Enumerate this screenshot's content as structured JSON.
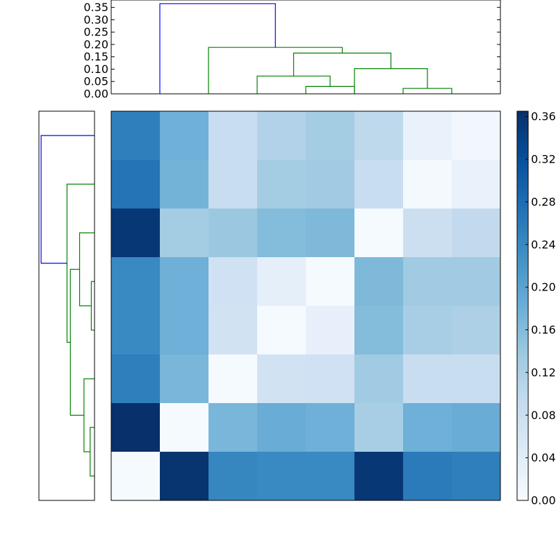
{
  "chart_data": {
    "type": "heatmap",
    "colormap": "Blues",
    "colors": {
      "frame": "#000000",
      "dendro_top_link": "#0000ff",
      "dendro_cluster_link": "#008000",
      "colormap_low": "#f7fbff",
      "colormap_high": "#08306b"
    },
    "matrix": [
      [
        0.255,
        0.18,
        0.085,
        0.115,
        0.13,
        0.1,
        0.025,
        0.01
      ],
      [
        0.27,
        0.175,
        0.085,
        0.13,
        0.135,
        0.085,
        0.005,
        0.025
      ],
      [
        0.355,
        0.13,
        0.14,
        0.16,
        0.165,
        0.003,
        0.08,
        0.095
      ],
      [
        0.24,
        0.18,
        0.075,
        0.035,
        0.003,
        0.165,
        0.135,
        0.135
      ],
      [
        0.24,
        0.18,
        0.07,
        0.003,
        0.03,
        0.16,
        0.125,
        0.12
      ],
      [
        0.255,
        0.17,
        0.003,
        0.07,
        0.075,
        0.135,
        0.085,
        0.085
      ],
      [
        0.365,
        0.003,
        0.17,
        0.185,
        0.18,
        0.125,
        0.18,
        0.185
      ],
      [
        0.003,
        0.36,
        0.245,
        0.24,
        0.24,
        0.355,
        0.26,
        0.255
      ]
    ],
    "heatmap_cols": [
      "",
      "",
      "",
      "",
      "",
      "",
      "",
      ""
    ],
    "heatmap_rows": [
      "",
      "",
      "",
      "",
      "",
      "",
      "",
      ""
    ],
    "colorbar": {
      "vmin": 0.0,
      "vmax": 0.365,
      "ticks": [
        {
          "value": 0.0,
          "label": "0.00"
        },
        {
          "value": 0.04,
          "label": "0.04"
        },
        {
          "value": 0.08,
          "label": "0.08"
        },
        {
          "value": 0.12,
          "label": "0.12"
        },
        {
          "value": 0.16,
          "label": "0.16"
        },
        {
          "value": 0.2,
          "label": "0.20"
        },
        {
          "value": 0.24,
          "label": "0.24"
        },
        {
          "value": 0.28,
          "label": "0.28"
        },
        {
          "value": 0.32,
          "label": "0.32"
        },
        {
          "value": 0.36,
          "label": "0.36"
        }
      ]
    },
    "top_dendrogram": {
      "ylim": [
        0.0,
        0.38
      ],
      "yticks": [
        {
          "value": 0.0,
          "label": "0.00"
        },
        {
          "value": 0.05,
          "label": "0.05"
        },
        {
          "value": 0.1,
          "label": "0.10"
        },
        {
          "value": 0.15,
          "label": "0.15"
        },
        {
          "value": 0.2,
          "label": "0.20"
        },
        {
          "value": 0.25,
          "label": "0.25"
        },
        {
          "value": 0.3,
          "label": "0.30"
        },
        {
          "value": 0.35,
          "label": "0.35"
        }
      ],
      "links": [
        {
          "x": [
            5,
            5,
            6,
            6
          ],
          "y": [
            0.0,
            0.03,
            0.03,
            0.0
          ],
          "color": "dendro_cluster_link"
        },
        {
          "x": [
            7,
            7,
            8,
            8
          ],
          "y": [
            0.0,
            0.022,
            0.022,
            0.0
          ],
          "color": "dendro_cluster_link"
        },
        {
          "x": [
            4,
            4,
            5.5,
            5.5
          ],
          "y": [
            0.0,
            0.072,
            0.072,
            0.03
          ],
          "color": "dendro_cluster_link"
        },
        {
          "x": [
            6,
            6,
            7.5,
            7.5
          ],
          "y": [
            0.0,
            0.102,
            0.102,
            0.022
          ],
          "color": "dendro_cluster_link"
        },
        {
          "x": [
            4.75,
            4.75,
            6.75,
            6.75
          ],
          "y": [
            0.072,
            0.165,
            0.165,
            0.102
          ],
          "color": "dendro_cluster_link"
        },
        {
          "x": [
            3,
            3,
            5.75,
            5.75
          ],
          "y": [
            0.0,
            0.188,
            0.188,
            0.165
          ],
          "color": "dendro_cluster_link"
        },
        {
          "x": [
            2,
            2,
            4.375,
            4.375
          ],
          "y": [
            0.0,
            0.365,
            0.365,
            0.188
          ],
          "color": "dendro_top_link"
        }
      ]
    },
    "left_dendrogram": {
      "xlim": [
        0.0,
        0.38
      ],
      "links": [
        {
          "y": [
            0,
            0,
            1,
            1
          ],
          "x": [
            0.0,
            0.03,
            0.03,
            0.0
          ],
          "color": "dendro_cluster_link"
        },
        {
          "y": [
            0.5,
            0.5,
            2,
            2
          ],
          "x": [
            0.03,
            0.072,
            0.072,
            0.0
          ],
          "color": "dendro_cluster_link"
        },
        {
          "y": [
            3,
            3,
            4,
            4
          ],
          "x": [
            0.0,
            0.022,
            0.022,
            0.0
          ],
          "color": "dendro_cluster_link"
        },
        {
          "y": [
            3.5,
            3.5,
            5,
            5
          ],
          "x": [
            0.022,
            0.102,
            0.102,
            0.0
          ],
          "color": "dendro_cluster_link"
        },
        {
          "y": [
            1.25,
            1.25,
            4.25,
            4.25
          ],
          "x": [
            0.072,
            0.165,
            0.165,
            0.102
          ],
          "color": "dendro_cluster_link"
        },
        {
          "y": [
            2.75,
            2.75,
            6,
            6
          ],
          "x": [
            0.165,
            0.188,
            0.188,
            0.0
          ],
          "color": "dendro_cluster_link"
        },
        {
          "y": [
            4.375,
            4.375,
            7,
            7
          ],
          "x": [
            0.188,
            0.365,
            0.365,
            0.0
          ],
          "color": "dendro_top_link"
        }
      ]
    }
  }
}
